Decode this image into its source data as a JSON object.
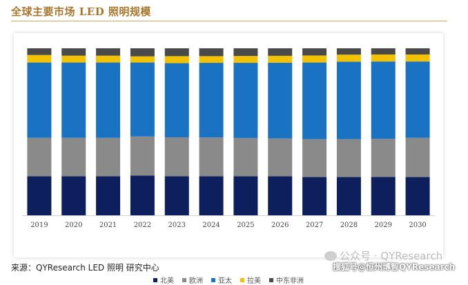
{
  "title": "全球主要市场 LED 照明规模",
  "source": "来源：QYResearch LED 照明  研究中心",
  "watermark_primary": "公众号 · QYResearch",
  "watermark_secondary": "搜狐号@恒州博智QYResearch",
  "colors": {
    "title": "#a8762a",
    "north_america": "#0d1f5c",
    "europe": "#8a8a8a",
    "asia_pacific": "#1a73c2",
    "latin_america": "#f2c200",
    "mea": "#4a4a4a"
  },
  "chart_data": {
    "type": "bar",
    "stacked": true,
    "normalized": true,
    "title": "全球主要市场 LED 照明规模",
    "xlabel": "",
    "ylabel": "",
    "ylim": [
      0,
      100
    ],
    "categories": [
      "2019",
      "2020",
      "2021",
      "2022",
      "2023",
      "2024",
      "2025",
      "2026",
      "2027",
      "2028",
      "2029",
      "2030"
    ],
    "series": [
      {
        "name": "北美",
        "color": "#0d1f5c",
        "values": [
          23.4,
          23.4,
          23.4,
          23.8,
          23.4,
          23.4,
          23.4,
          23.4,
          22.9,
          22.9,
          23.0,
          22.9
        ]
      },
      {
        "name": "欧洲",
        "color": "#8a8a8a",
        "values": [
          23.0,
          23.0,
          23.0,
          23.4,
          23.3,
          23.2,
          22.9,
          22.6,
          22.7,
          22.7,
          22.8,
          23.5
        ]
      },
      {
        "name": "亚太",
        "color": "#1a73c2",
        "values": [
          45.1,
          45.1,
          45.1,
          44.3,
          44.4,
          44.7,
          45.0,
          45.4,
          45.9,
          46.4,
          46.3,
          45.7
        ]
      },
      {
        "name": "拉美",
        "color": "#f2c200",
        "values": [
          4.5,
          4.1,
          4.1,
          3.7,
          4.2,
          4.0,
          4.1,
          4.1,
          4.2,
          4.2,
          4.2,
          4.2
        ]
      },
      {
        "name": "中东非洲",
        "color": "#4a4a4a",
        "values": [
          4.0,
          4.4,
          4.4,
          4.8,
          4.7,
          4.7,
          4.6,
          4.5,
          4.3,
          3.8,
          3.7,
          3.7
        ]
      }
    ],
    "legend_position": "bottom"
  }
}
